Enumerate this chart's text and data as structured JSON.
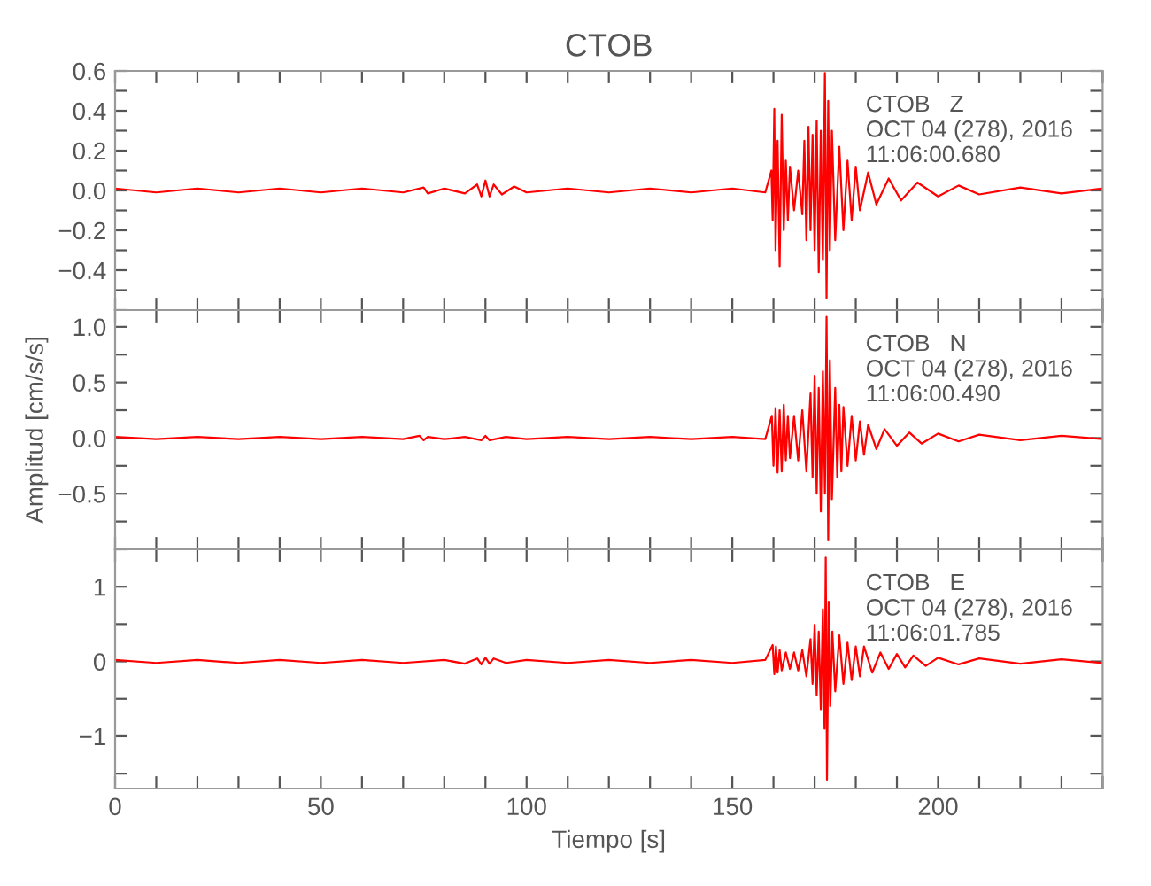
{
  "chart_data": [
    {
      "type": "line",
      "title": "CTOB",
      "annotations": [
        "CTOB   Z\nOCT 04 (278), 2016\n11:06:00.680"
      ],
      "tick_labels": "y",
      "grid": false,
      "series": [
        {
          "color": "#ff0000",
          "x": [
            0,
            10,
            20,
            30,
            40,
            50,
            60,
            70,
            75,
            76,
            80,
            85,
            88,
            89,
            90,
            91,
            92,
            94,
            97,
            100,
            110,
            120,
            130,
            140,
            150,
            158,
            159.5,
            159.8,
            160.2,
            160.5,
            161,
            161.5,
            162,
            162.5,
            163,
            163.5,
            164,
            165,
            166,
            167,
            167.5,
            168,
            168.5,
            169,
            169.5,
            170,
            170.5,
            171,
            171.5,
            172,
            172.5,
            172.9,
            173.3,
            173.7,
            174.2,
            175,
            176,
            177,
            178,
            179,
            180,
            181,
            183,
            185,
            188,
            191,
            195,
            200,
            205,
            210,
            220,
            230,
            240
          ],
          "values": [
            0.01,
            -0.01,
            0.01,
            -0.01,
            0.01,
            -0.01,
            0.01,
            -0.01,
            0.015,
            -0.015,
            0.01,
            -0.015,
            0.03,
            -0.03,
            0.05,
            -0.03,
            0.03,
            -0.02,
            0.02,
            -0.01,
            0.01,
            -0.01,
            0.01,
            -0.01,
            0.01,
            -0.01,
            0.1,
            -0.15,
            0.41,
            -0.3,
            0.25,
            -0.38,
            0.38,
            -0.2,
            0.15,
            -0.15,
            0.12,
            -0.1,
            0.1,
            -0.12,
            0.25,
            -0.25,
            0.32,
            -0.2,
            0.28,
            -0.3,
            0.35,
            -0.41,
            0.3,
            -0.35,
            0.59,
            -0.54,
            0.45,
            -0.3,
            0.3,
            -0.25,
            0.22,
            -0.2,
            0.15,
            -0.15,
            0.12,
            -0.1,
            0.09,
            -0.07,
            0.06,
            -0.05,
            0.04,
            -0.03,
            0.025,
            -0.02,
            0.015,
            -0.015,
            0.01
          ]
        }
      ],
      "xlim": [
        0,
        240
      ],
      "xticks": [
        0,
        {
          "value": 10,
          "label": null
        },
        {
          "value": 20,
          "label": null
        },
        {
          "value": 30,
          "label": null
        },
        {
          "value": 40,
          "label": null
        },
        50,
        {
          "value": 60,
          "label": null
        },
        {
          "value": 70,
          "label": null
        },
        {
          "value": 80,
          "label": null
        },
        {
          "value": 90,
          "label": null
        },
        100,
        {
          "value": 110,
          "label": null
        },
        {
          "value": 120,
          "label": null
        },
        {
          "value": 130,
          "label": null
        },
        {
          "value": 140,
          "label": null
        },
        150,
        {
          "value": 160,
          "label": null
        },
        {
          "value": 170,
          "label": null
        },
        {
          "value": 180,
          "label": null
        },
        {
          "value": 190,
          "label": null
        },
        200,
        {
          "value": 210,
          "label": null
        },
        {
          "value": 220,
          "label": null
        },
        {
          "value": 230,
          "label": null
        },
        {
          "value": 240,
          "label": null
        }
      ],
      "ylim": [
        -0.6,
        0.6
      ],
      "yticks": [
        {
          "value": -0.6,
          "label": null
        },
        {
          "value": -0.5,
          "label": null
        },
        {
          "value": -0.4,
          "label": "−0.4"
        },
        {
          "value": -0.3,
          "label": null
        },
        {
          "value": -0.2,
          "label": "−0.2"
        },
        {
          "value": -0.1,
          "label": null
        },
        {
          "value": 0,
          "label": "0.0"
        },
        {
          "value": 0.1,
          "label": null
        },
        {
          "value": 0.2,
          "label": "0.2"
        },
        {
          "value": 0.3,
          "label": null
        },
        {
          "value": 0.4,
          "label": "0.4"
        },
        {
          "value": 0.5,
          "label": null
        },
        {
          "value": 0.6,
          "label": "0.6"
        }
      ]
    },
    {
      "type": "line",
      "ylabel": "Amplitud [cm/s/s]",
      "annotations": [
        "CTOB   N\nOCT 04 (278), 2016\n11:06:00.490"
      ],
      "tick_labels": "y",
      "grid": false,
      "series": [
        {
          "color": "#ff0000",
          "x": [
            0,
            10,
            20,
            30,
            40,
            50,
            60,
            70,
            74,
            75,
            76,
            80,
            85,
            89,
            90,
            91,
            95,
            100,
            110,
            120,
            130,
            140,
            150,
            158,
            159.6,
            160,
            160.5,
            161,
            161.5,
            162,
            162.5,
            163,
            163.5,
            164,
            165,
            166,
            167,
            168,
            169,
            169.5,
            170,
            170.5,
            171,
            171.5,
            172,
            172.5,
            172.9,
            173.3,
            173.7,
            174.2,
            175,
            175.5,
            176,
            176.5,
            177,
            178,
            179,
            180,
            181,
            182,
            183,
            185,
            187,
            190,
            193,
            196,
            200,
            205,
            210,
            220,
            230,
            240
          ],
          "values": [
            0.01,
            -0.01,
            0.01,
            -0.01,
            0.01,
            -0.01,
            0.01,
            -0.01,
            0.02,
            -0.02,
            0.01,
            -0.01,
            0.01,
            -0.02,
            0.02,
            -0.02,
            0.01,
            -0.01,
            0.01,
            -0.01,
            0.01,
            -0.01,
            0.01,
            -0.01,
            0.2,
            -0.25,
            0.27,
            -0.31,
            0.25,
            -0.3,
            0.3,
            -0.2,
            0.2,
            -0.18,
            0.2,
            -0.2,
            0.25,
            -0.3,
            0.4,
            -0.35,
            0.56,
            -0.5,
            0.45,
            -0.66,
            0.6,
            -0.5,
            1.09,
            -0.92,
            0.7,
            -0.55,
            0.45,
            -0.35,
            0.3,
            -0.3,
            0.28,
            -0.25,
            0.2,
            -0.2,
            0.15,
            -0.15,
            0.12,
            -0.1,
            0.08,
            -0.07,
            0.05,
            -0.05,
            0.04,
            -0.03,
            0.03,
            -0.02,
            0.02,
            -0.01
          ]
        }
      ],
      "xlim": [
        0,
        240
      ],
      "xticks": [
        0,
        {
          "value": 10,
          "label": null
        },
        {
          "value": 20,
          "label": null
        },
        {
          "value": 30,
          "label": null
        },
        {
          "value": 40,
          "label": null
        },
        50,
        {
          "value": 60,
          "label": null
        },
        {
          "value": 70,
          "label": null
        },
        {
          "value": 80,
          "label": null
        },
        {
          "value": 90,
          "label": null
        },
        100,
        {
          "value": 110,
          "label": null
        },
        {
          "value": 120,
          "label": null
        },
        {
          "value": 130,
          "label": null
        },
        {
          "value": 140,
          "label": null
        },
        150,
        {
          "value": 160,
          "label": null
        },
        {
          "value": 170,
          "label": null
        },
        {
          "value": 180,
          "label": null
        },
        {
          "value": 190,
          "label": null
        },
        200,
        {
          "value": 210,
          "label": null
        },
        {
          "value": 220,
          "label": null
        },
        {
          "value": 230,
          "label": null
        },
        {
          "value": 240,
          "label": null
        }
      ],
      "ylim": [
        -1.0,
        1.15
      ],
      "yticks": [
        {
          "value": -1.0,
          "label": null
        },
        {
          "value": -0.75,
          "label": null
        },
        {
          "value": -0.5,
          "label": "−0.5"
        },
        {
          "value": -0.25,
          "label": null
        },
        {
          "value": 0,
          "label": "0.0"
        },
        {
          "value": 0.25,
          "label": null
        },
        {
          "value": 0.5,
          "label": "0.5"
        },
        {
          "value": 0.75,
          "label": null
        },
        {
          "value": 1.0,
          "label": "1.0"
        }
      ]
    },
    {
      "type": "line",
      "xlabel": "Tiempo [s]",
      "annotations": [
        "CTOB   E\nOCT 04 (278), 2016\n11:06:01.785"
      ],
      "grid": false,
      "series": [
        {
          "color": "#ff0000",
          "x": [
            0,
            10,
            20,
            30,
            40,
            50,
            60,
            70,
            80,
            85,
            88,
            89,
            90,
            91,
            92,
            95,
            100,
            110,
            120,
            130,
            140,
            150,
            158,
            159.8,
            160.2,
            160.6,
            161,
            161.5,
            162,
            163,
            164,
            165,
            166,
            167,
            168,
            169,
            169.5,
            170,
            170.5,
            171,
            171.5,
            172,
            172.4,
            172.7,
            173,
            173.4,
            173.8,
            174.3,
            175,
            176,
            177,
            178,
            179,
            180,
            181,
            182,
            184,
            186,
            188,
            190,
            192,
            194,
            197,
            200,
            205,
            210,
            220,
            230,
            240
          ],
          "values": [
            0.02,
            -0.02,
            0.02,
            -0.02,
            0.02,
            -0.02,
            0.02,
            -0.02,
            0.02,
            -0.03,
            0.04,
            -0.04,
            0.05,
            -0.03,
            0.04,
            -0.02,
            0.02,
            -0.02,
            0.02,
            -0.02,
            0.02,
            -0.02,
            0.02,
            0.22,
            -0.17,
            0.2,
            -0.15,
            0.15,
            -0.12,
            0.12,
            -0.1,
            0.12,
            -0.12,
            0.15,
            -0.2,
            0.3,
            -0.3,
            0.49,
            -0.45,
            0.4,
            -0.64,
            0.7,
            -0.9,
            1.39,
            -1.58,
            0.8,
            -0.6,
            0.4,
            -0.4,
            0.35,
            -0.3,
            0.25,
            -0.25,
            0.2,
            -0.2,
            0.2,
            -0.15,
            0.12,
            -0.1,
            0.1,
            -0.08,
            0.08,
            -0.06,
            0.05,
            -0.04,
            0.04,
            -0.03,
            0.03,
            -0.02
          ]
        }
      ],
      "xlim": [
        0,
        240
      ],
      "xticks": [
        0,
        {
          "value": 10,
          "label": null
        },
        {
          "value": 20,
          "label": null
        },
        {
          "value": 30,
          "label": null
        },
        {
          "value": 40,
          "label": null
        },
        50,
        {
          "value": 60,
          "label": null
        },
        {
          "value": 70,
          "label": null
        },
        {
          "value": 80,
          "label": null
        },
        {
          "value": 90,
          "label": null
        },
        100,
        {
          "value": 110,
          "label": null
        },
        {
          "value": 120,
          "label": null
        },
        {
          "value": 130,
          "label": null
        },
        {
          "value": 140,
          "label": null
        },
        150,
        {
          "value": 160,
          "label": null
        },
        {
          "value": 170,
          "label": null
        },
        {
          "value": 180,
          "label": null
        },
        {
          "value": 190,
          "label": null
        },
        200,
        {
          "value": 210,
          "label": null
        },
        {
          "value": 220,
          "label": null
        },
        {
          "value": 230,
          "label": null
        },
        {
          "value": 240,
          "label": null
        }
      ],
      "ylim": [
        -1.7,
        1.5
      ],
      "yticks": [
        {
          "value": -1.5,
          "label": null
        },
        {
          "value": -1,
          "label": "−1"
        },
        {
          "value": -0.5,
          "label": null
        },
        0,
        {
          "value": 0.5,
          "label": null
        },
        1,
        {
          "value": 1.5,
          "label": null
        }
      ]
    }
  ]
}
